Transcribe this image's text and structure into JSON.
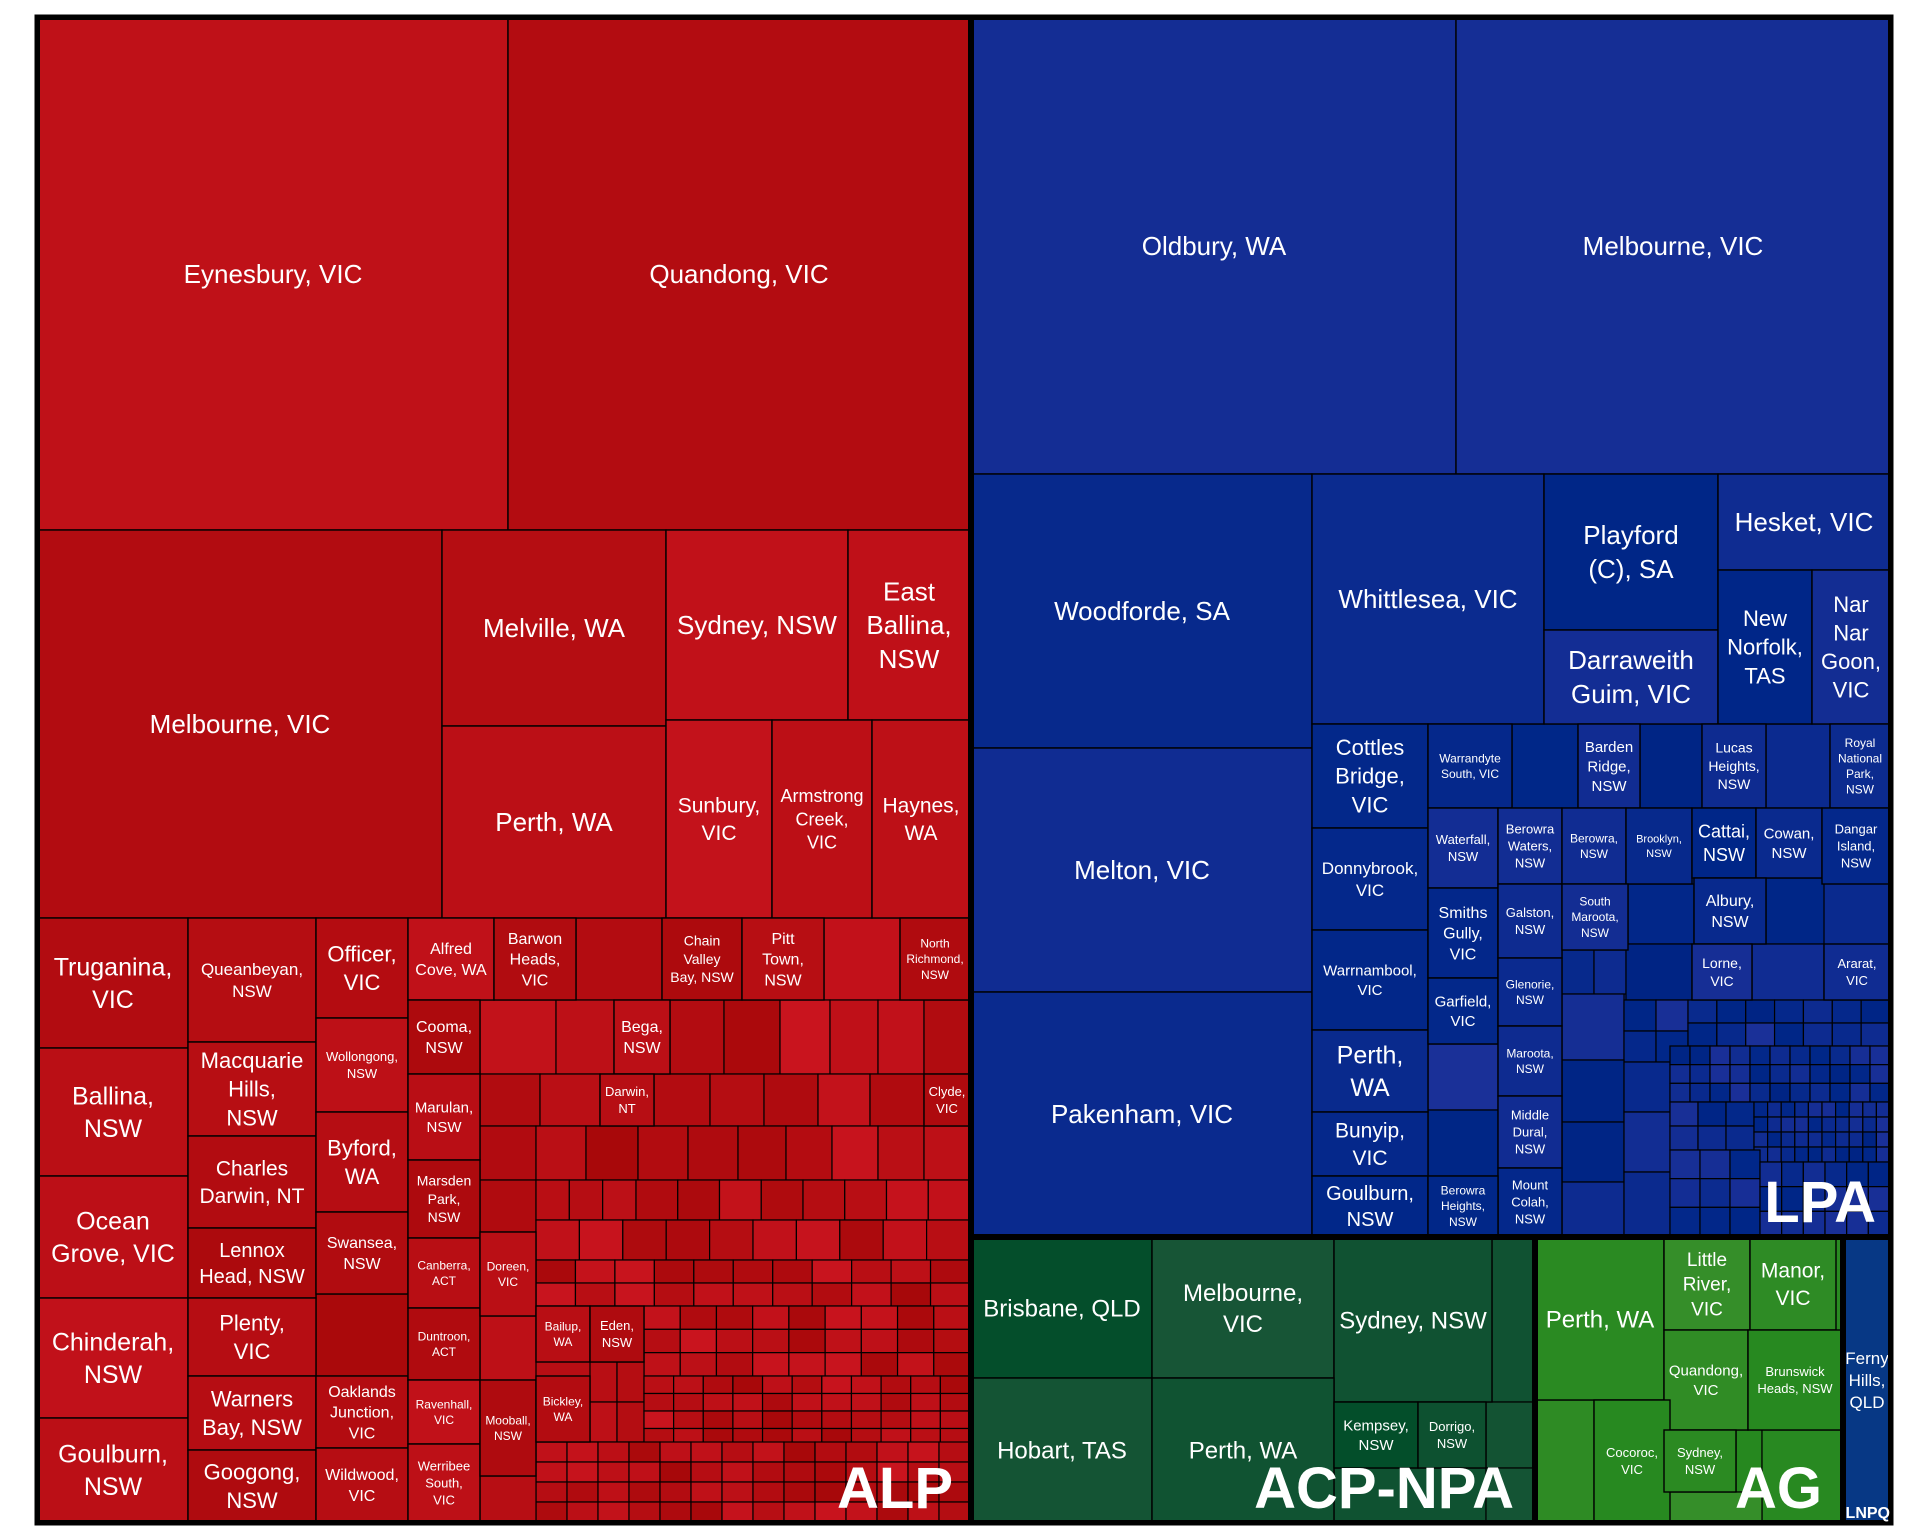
{
  "chart_data": {
    "type": "treemap",
    "title": "",
    "colors": {
      "ALP": "#b80e14",
      "LPA": "#0a2a8e",
      "ACP-NPA": "#0f5231",
      "AG": "#2a8a22",
      "LNPQ": "#123c8c",
      "border": "#000000",
      "text": "#ffffff"
    },
    "groups": [
      {
        "name": "ALP",
        "color": "#b80e14",
        "items": [
          {
            "label": "Eynesbury, VIC",
            "value": 12
          },
          {
            "label": "Quandong, VIC",
            "value": 12
          },
          {
            "label": "Melbourne, VIC",
            "value": 10
          },
          {
            "label": "Melville, WA",
            "value": 3.6
          },
          {
            "label": "Perth, WA",
            "value": 4
          },
          {
            "label": "Sydney, NSW",
            "value": 2.8
          },
          {
            "label": "East Ballina, NSW",
            "value": 2.8
          },
          {
            "label": "Sunbury, VIC",
            "value": 1.6
          },
          {
            "label": "Armstrong Creek, VIC",
            "value": 1.6
          },
          {
            "label": "Haynes, WA",
            "value": 1.5
          },
          {
            "label": "Truganina, VIC",
            "value": 1.2
          },
          {
            "label": "Ballina, NSW",
            "value": 1.1
          },
          {
            "label": "Ocean Grove, VIC",
            "value": 1.1
          },
          {
            "label": "Chinderah, NSW",
            "value": 1.0
          },
          {
            "label": "Goulburn, NSW",
            "value": 0.9
          },
          {
            "label": "Queanbeyan, NSW",
            "value": 1.0
          },
          {
            "label": "Macquarie Hills, NSW",
            "value": 0.85
          },
          {
            "label": "Charles Darwin, NT",
            "value": 0.8
          },
          {
            "label": "Lennox Head, NSW",
            "value": 0.7
          },
          {
            "label": "Plenty, VIC",
            "value": 0.65
          },
          {
            "label": "Warners Bay, NSW",
            "value": 0.6
          },
          {
            "label": "Googong, NSW",
            "value": 0.55
          },
          {
            "label": "Officer, VIC",
            "value": 0.6
          },
          {
            "label": "Wollongong, NSW",
            "value": 0.55
          },
          {
            "label": "Byford, WA",
            "value": 0.5
          },
          {
            "label": "Swansea, NSW",
            "value": 0.45
          },
          {
            "label": "Oaklands Junction, VIC",
            "value": 0.4
          },
          {
            "label": "Wildwood, VIC",
            "value": 0.35
          },
          {
            "label": "Alfred Cove, WA",
            "value": 0.4
          },
          {
            "label": "Barwon Heads, VIC",
            "value": 0.4
          },
          {
            "label": "Chain Valley Bay, NSW",
            "value": 0.35
          },
          {
            "label": "Pitt Town, NSW",
            "value": 0.35
          },
          {
            "label": "North Richmond, NSW",
            "value": 0.3
          },
          {
            "label": "Cooma, NSW",
            "value": 0.3
          },
          {
            "label": "Bega, NSW",
            "value": 0.28
          },
          {
            "label": "Marulan, NSW",
            "value": 0.28
          },
          {
            "label": "Marsden Park, NSW",
            "value": 0.25
          },
          {
            "label": "Darwin, NT",
            "value": 0.22
          },
          {
            "label": "Clyde, VIC",
            "value": 0.2
          },
          {
            "label": "Canberra, ACT",
            "value": 0.25
          },
          {
            "label": "Duntroon, ACT",
            "value": 0.22
          },
          {
            "label": "Ravenhall, VIC",
            "value": 0.2
          },
          {
            "label": "Werribee South, VIC",
            "value": 0.2
          },
          {
            "label": "Doreen, VIC",
            "value": 0.18
          },
          {
            "label": "Mooball, NSW",
            "value": 0.16
          },
          {
            "label": "Bailup, WA",
            "value": 0.14
          },
          {
            "label": "Bickley, WA",
            "value": 0.14
          },
          {
            "label": "Eden, NSW",
            "value": 0.14
          }
        ]
      },
      {
        "name": "LPA",
        "color": "#0a2a8e",
        "items": [
          {
            "label": "Oldbury, WA",
            "value": 8
          },
          {
            "label": "Melbourne, VIC",
            "value": 7.5
          },
          {
            "label": "Woodforde, SA",
            "value": 4.2
          },
          {
            "label": "Melton, VIC",
            "value": 3.8
          },
          {
            "label": "Pakenham, VIC",
            "value": 3.8
          },
          {
            "label": "Whittlesea, VIC",
            "value": 3
          },
          {
            "label": "Playford (C), SA",
            "value": 1.3
          },
          {
            "label": "Darraweith Guim, VIC",
            "value": 0.9
          },
          {
            "label": "Hesket, VIC",
            "value": 0.75
          },
          {
            "label": "New Norfolk, TAS",
            "value": 0.7
          },
          {
            "label": "Nar Nar Goon, VIC",
            "value": 0.6
          },
          {
            "label": "Cottles Bridge, VIC",
            "value": 0.65
          },
          {
            "label": "Donnybrook, VIC",
            "value": 0.6
          },
          {
            "label": "Warrnambool, VIC",
            "value": 0.55
          },
          {
            "label": "Perth, WA",
            "value": 0.55
          },
          {
            "label": "Bunyip, VIC",
            "value": 0.35
          },
          {
            "label": "Goulburn, NSW",
            "value": 0.35
          },
          {
            "label": "Warrandyte South, VIC",
            "value": 0.3
          },
          {
            "label": "Barden Ridge, NSW",
            "value": 0.3
          },
          {
            "label": "Lucas Heights, NSW",
            "value": 0.3
          },
          {
            "label": "Royal National Park, NSW",
            "value": 0.28
          },
          {
            "label": "Waterfall, NSW",
            "value": 0.25
          },
          {
            "label": "Berowra Waters, NSW",
            "value": 0.25
          },
          {
            "label": "Berowra, NSW",
            "value": 0.22
          },
          {
            "label": "Brooklyn, NSW",
            "value": 0.22
          },
          {
            "label": "Cattai, NSW",
            "value": 0.22
          },
          {
            "label": "Cowan, NSW",
            "value": 0.2
          },
          {
            "label": "Dangar Island, NSW",
            "value": 0.2
          },
          {
            "label": "Smiths Gully, VIC",
            "value": 0.25
          },
          {
            "label": "Galston, NSW",
            "value": 0.2
          },
          {
            "label": "South Maroota, NSW",
            "value": 0.2
          },
          {
            "label": "Albury, NSW",
            "value": 0.2
          },
          {
            "label": "Garfield, VIC",
            "value": 0.2
          },
          {
            "label": "Glenorie, NSW",
            "value": 0.18
          },
          {
            "label": "Lorne, VIC",
            "value": 0.16
          },
          {
            "label": "Ararat, VIC",
            "value": 0.16
          },
          {
            "label": "Maroota, NSW",
            "value": 0.16
          },
          {
            "label": "Middle Dural, NSW",
            "value": 0.16
          },
          {
            "label": "Mount Colah, NSW",
            "value": 0.15
          },
          {
            "label": "Berowra Heights, NSW",
            "value": 0.15
          }
        ]
      },
      {
        "name": "ACP-NPA",
        "color": "#0f5231",
        "items": [
          {
            "label": "Brisbane, QLD",
            "value": 1.3
          },
          {
            "label": "Melbourne, VIC",
            "value": 1.3
          },
          {
            "label": "Sydney, NSW",
            "value": 1.1
          },
          {
            "label": "Hobart, TAS",
            "value": 1.3
          },
          {
            "label": "Perth, WA",
            "value": 1.3
          },
          {
            "label": "Kempsey, NSW",
            "value": 0.25
          },
          {
            "label": "Dorrigo, NSW",
            "value": 0.2
          }
        ]
      },
      {
        "name": "AG",
        "color": "#2a8a22",
        "items": [
          {
            "label": "Perth, WA",
            "value": 1.2
          },
          {
            "label": "Little River, VIC",
            "value": 0.55
          },
          {
            "label": "Manor, VIC",
            "value": 0.5
          },
          {
            "label": "Quandong, VIC",
            "value": 0.5
          },
          {
            "label": "Brunswick Heads, NSW",
            "value": 0.45
          },
          {
            "label": "Cocoroc, VIC",
            "value": 0.55
          },
          {
            "label": "Sydney, NSW",
            "value": 0.35
          }
        ]
      },
      {
        "name": "LNPQ",
        "color": "#123c8c",
        "items": [
          {
            "label": "Ferny Hills, QLD",
            "value": 0.9
          }
        ]
      }
    ],
    "group_labels": [
      "ALP",
      "LPA",
      "ACP-NPA",
      "AG",
      "LNPQ"
    ]
  }
}
